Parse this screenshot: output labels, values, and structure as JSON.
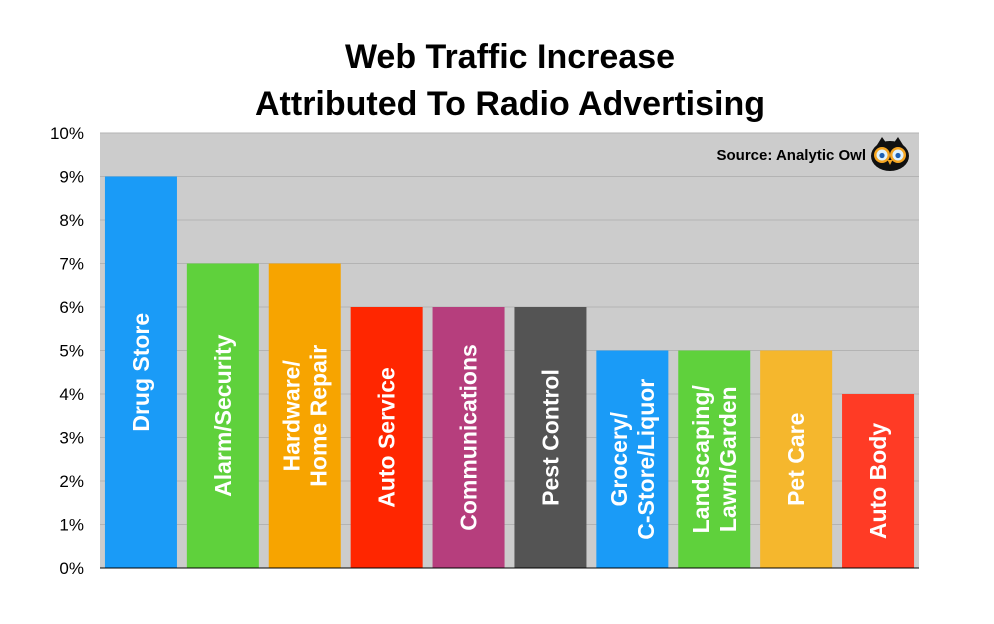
{
  "chart_data": {
    "type": "bar",
    "title": [
      "Web Traffic Increase",
      "Attributed To Radio Advertising"
    ],
    "source": "Source: Analytic Owl",
    "logo_icon": "owl-icon",
    "categories": [
      [
        "Drug Store"
      ],
      [
        "Alarm/Security"
      ],
      [
        "Hardware/",
        "Home Repair"
      ],
      [
        "Auto Service"
      ],
      [
        "Communications"
      ],
      [
        "Pest Control"
      ],
      [
        "Grocery/",
        "C-Store/Liquor"
      ],
      [
        "Landscaping/",
        "Lawn/Garden"
      ],
      [
        "Pet Care"
      ],
      [
        "Auto Body"
      ]
    ],
    "values": [
      9,
      7,
      7,
      6,
      6,
      6,
      5,
      5,
      5,
      4
    ],
    "colors": [
      "#1a9bf7",
      "#5fd13c",
      "#f7a400",
      "#ff2600",
      "#b63e7d",
      "#545454",
      "#1a9bf7",
      "#5fd13c",
      "#f5b72d",
      "#ff3b25"
    ],
    "yticks": [
      "0%",
      "1%",
      "2%",
      "3%",
      "4%",
      "5%",
      "6%",
      "7%",
      "8%",
      "9%",
      "10%"
    ],
    "ylim": [
      0,
      10
    ],
    "grid": true,
    "plot_background": "#cccccc",
    "xlabel": "",
    "ylabel": ""
  }
}
